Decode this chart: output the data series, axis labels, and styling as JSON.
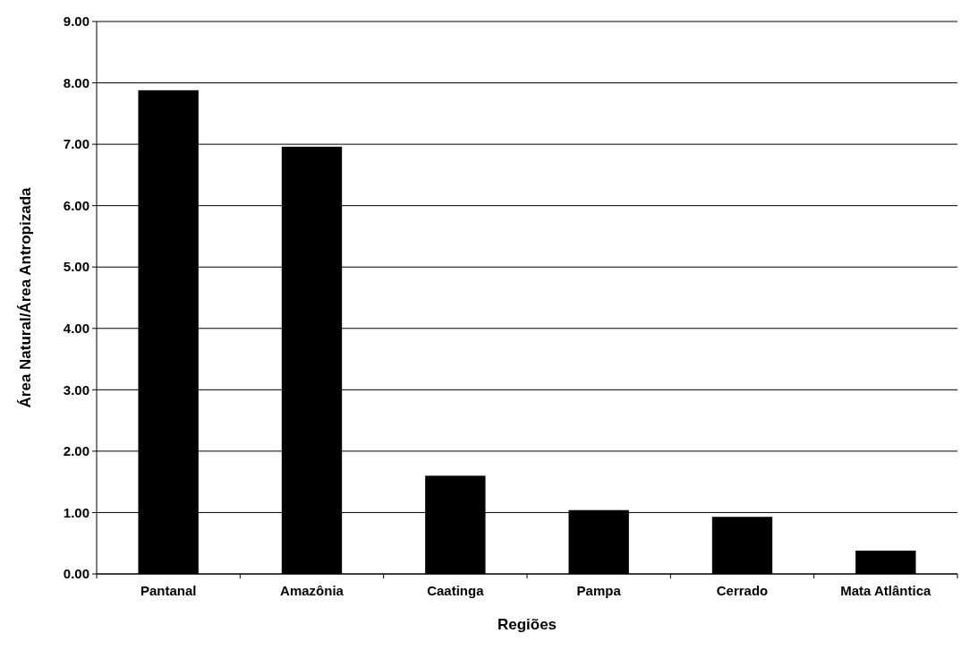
{
  "chart_data": {
    "type": "bar",
    "xlabel": "Regiões",
    "ylabel": "Área Natural/Área Antropizada",
    "categories": [
      "Pantanal",
      "Amazônia",
      "Caatinga",
      "Pampa",
      "Cerrado",
      "Mata Atlântica"
    ],
    "values": [
      7.88,
      6.96,
      1.6,
      1.04,
      0.93,
      0.38
    ],
    "color": "#000000",
    "ylim": [
      0,
      9
    ],
    "yticks": [
      {
        "value": 0,
        "label": "0.00"
      },
      {
        "value": 1,
        "label": "1.00"
      },
      {
        "value": 2,
        "label": "2.00"
      },
      {
        "value": 3,
        "label": "3.00"
      },
      {
        "value": 4,
        "label": "4.00"
      },
      {
        "value": 5,
        "label": "5.00"
      },
      {
        "value": 6,
        "label": "6.00"
      },
      {
        "value": 7,
        "label": "7.00"
      },
      {
        "value": 8,
        "label": "8.00"
      },
      {
        "value": 9,
        "label": "9.00"
      }
    ],
    "grid": "y"
  }
}
